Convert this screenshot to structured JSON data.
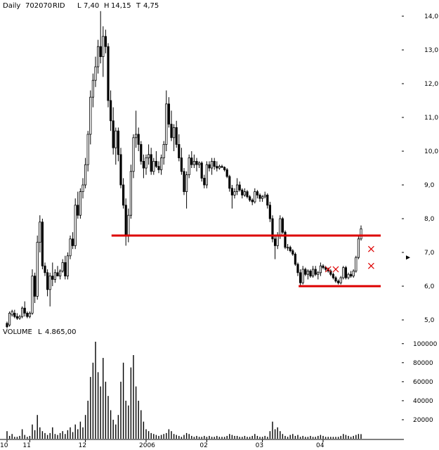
{
  "header": {
    "period": "Daily",
    "symbol": "702070",
    "exchange": "RID",
    "low_label": "L",
    "low_value": "7,40",
    "high_label": "H",
    "high_value": "14,15",
    "third_label": "T",
    "third_value": "4,75"
  },
  "volume_header": {
    "label": "VOLUME",
    "last_label": "L",
    "last_value": "4.865,00"
  },
  "colors": {
    "bull_fill": "#ffffff",
    "bear_fill": "#000000",
    "candle_stroke": "#000000",
    "support_line": "#dd0000",
    "cross_marks": "#dd0000"
  },
  "chart_data": [
    {
      "type": "candlestick",
      "title": "",
      "ylim": [
        5.0,
        14.0
      ],
      "yticks": [
        "5,0",
        "6,0",
        "7,0",
        "8,0",
        "9,0",
        "10,0",
        "11,0",
        "12,0",
        "13,0",
        "14,0"
      ],
      "ytick_values": [
        5,
        6,
        7,
        8,
        9,
        10,
        11,
        12,
        13,
        14
      ],
      "xtick_labels": [
        "10",
        "11",
        "12",
        "2006",
        "02",
        "03",
        "04"
      ],
      "xtick_index": [
        0,
        9,
        31,
        55,
        79,
        101,
        125
      ],
      "horizontal_lines": [
        {
          "value": 7.5,
          "from": 43,
          "to": 145
        },
        {
          "value": 6.0,
          "from": 117,
          "to": 145
        }
      ],
      "marks": [
        {
          "index": 127,
          "value": 6.5
        },
        {
          "index": 130,
          "value": 6.5
        },
        {
          "index": 144,
          "value": 7.1
        },
        {
          "index": 144,
          "value": 6.6
        }
      ],
      "pointer": {
        "value": 6.85
      },
      "ohlc": [
        [
          4.9,
          4.95,
          4.75,
          4.8
        ],
        [
          4.85,
          5.25,
          4.8,
          5.2
        ],
        [
          5.15,
          5.3,
          5.1,
          5.25
        ],
        [
          5.2,
          5.3,
          5.05,
          5.1
        ],
        [
          5.1,
          5.2,
          5.0,
          5.05
        ],
        [
          5.05,
          5.15,
          5.0,
          5.1
        ],
        [
          5.1,
          5.4,
          5.05,
          5.35
        ],
        [
          5.35,
          5.55,
          5.1,
          5.2
        ],
        [
          5.2,
          5.25,
          5.05,
          5.1
        ],
        [
          5.1,
          5.25,
          5.05,
          5.2
        ],
        [
          5.2,
          6.5,
          5.15,
          6.3
        ],
        [
          6.3,
          6.4,
          5.5,
          5.7
        ],
        [
          5.7,
          7.5,
          5.6,
          7.3
        ],
        [
          7.3,
          8.1,
          7.0,
          7.9
        ],
        [
          7.9,
          8.0,
          6.5,
          6.6
        ],
        [
          6.6,
          6.7,
          6.3,
          6.4
        ],
        [
          6.4,
          6.5,
          5.7,
          5.9
        ],
        [
          5.9,
          6.4,
          5.4,
          6.3
        ],
        [
          6.3,
          6.7,
          6.0,
          6.2
        ],
        [
          6.2,
          6.5,
          6.1,
          6.4
        ],
        [
          6.4,
          6.6,
          6.3,
          6.3
        ],
        [
          6.3,
          6.5,
          6.2,
          6.45
        ],
        [
          6.45,
          6.8,
          6.4,
          6.7
        ],
        [
          6.7,
          6.9,
          6.2,
          6.3
        ],
        [
          6.3,
          7.0,
          6.2,
          6.9
        ],
        [
          6.9,
          7.5,
          6.8,
          7.4
        ],
        [
          7.4,
          7.6,
          7.1,
          7.2
        ],
        [
          7.2,
          8.6,
          7.1,
          8.4
        ],
        [
          8.4,
          8.8,
          8.0,
          8.1
        ],
        [
          8.1,
          8.9,
          8.0,
          8.8
        ],
        [
          8.8,
          9.2,
          8.6,
          9.0
        ],
        [
          9.0,
          9.8,
          8.9,
          9.6
        ],
        [
          9.6,
          10.6,
          9.4,
          10.5
        ],
        [
          10.5,
          11.8,
          10.2,
          11.6
        ],
        [
          11.6,
          12.3,
          11.3,
          12.1
        ],
        [
          12.1,
          12.8,
          11.9,
          12.5
        ],
        [
          12.5,
          13.3,
          12.3,
          13.1
        ],
        [
          13.1,
          14.15,
          12.6,
          12.8
        ],
        [
          12.8,
          13.7,
          12.2,
          13.4
        ],
        [
          13.4,
          13.6,
          12.9,
          13.1
        ],
        [
          13.1,
          13.2,
          11.3,
          11.5
        ],
        [
          11.5,
          11.8,
          10.6,
          10.9
        ],
        [
          10.9,
          11.3,
          9.9,
          10.1
        ],
        [
          10.1,
          10.7,
          9.6,
          10.6
        ],
        [
          10.6,
          10.7,
          9.7,
          9.9
        ],
        [
          9.9,
          10.1,
          8.9,
          9.0
        ],
        [
          9.0,
          9.2,
          8.3,
          8.4
        ],
        [
          8.4,
          8.6,
          7.2,
          7.5
        ],
        [
          7.5,
          8.3,
          7.3,
          8.1
        ],
        [
          8.1,
          9.6,
          8.0,
          9.4
        ],
        [
          9.4,
          10.5,
          9.2,
          10.4
        ],
        [
          10.4,
          11.2,
          10.1,
          10.5
        ],
        [
          10.5,
          10.7,
          10.0,
          10.2
        ],
        [
          10.2,
          10.3,
          9.6,
          9.7
        ],
        [
          9.7,
          9.9,
          9.2,
          9.5
        ],
        [
          9.5,
          9.9,
          9.3,
          9.8
        ],
        [
          9.8,
          10.2,
          9.6,
          9.9
        ],
        [
          9.9,
          10.1,
          9.3,
          9.4
        ],
        [
          9.4,
          9.8,
          9.3,
          9.7
        ],
        [
          9.7,
          10.0,
          9.5,
          9.55
        ],
        [
          9.55,
          9.7,
          9.35,
          9.45
        ],
        [
          9.45,
          9.9,
          9.3,
          9.8
        ],
        [
          9.8,
          10.3,
          9.6,
          10.2
        ],
        [
          10.2,
          11.8,
          10.0,
          11.4
        ],
        [
          11.4,
          11.6,
          10.7,
          10.8
        ],
        [
          10.8,
          11.2,
          10.3,
          10.4
        ],
        [
          10.4,
          10.8,
          10.0,
          10.7
        ],
        [
          10.7,
          10.9,
          10.1,
          10.2
        ],
        [
          10.2,
          10.5,
          9.7,
          9.8
        ],
        [
          9.8,
          10.1,
          9.3,
          9.4
        ],
        [
          9.4,
          9.5,
          8.7,
          8.8
        ],
        [
          8.8,
          9.4,
          8.3,
          9.3
        ],
        [
          9.3,
          9.9,
          9.2,
          9.8
        ],
        [
          9.8,
          10.0,
          9.5,
          9.6
        ],
        [
          9.6,
          9.9,
          9.5,
          9.7
        ],
        [
          9.7,
          9.8,
          9.4,
          9.6
        ],
        [
          9.6,
          9.7,
          9.5,
          9.65
        ],
        [
          9.65,
          9.7,
          9.1,
          9.2
        ],
        [
          9.2,
          9.3,
          8.9,
          9.0
        ],
        [
          9.0,
          9.7,
          8.9,
          9.6
        ],
        [
          9.6,
          9.7,
          9.4,
          9.5
        ],
        [
          9.5,
          9.8,
          9.3,
          9.7
        ],
        [
          9.7,
          9.8,
          9.45,
          9.55
        ],
        [
          9.55,
          9.7,
          9.4,
          9.5
        ],
        [
          9.5,
          9.6,
          9.45,
          9.55
        ],
        [
          9.55,
          9.6,
          9.5,
          9.52
        ],
        [
          9.52,
          9.55,
          9.4,
          9.45
        ],
        [
          9.45,
          9.5,
          9.2,
          9.25
        ],
        [
          9.25,
          9.3,
          8.8,
          8.9
        ],
        [
          8.9,
          9.0,
          8.3,
          8.7
        ],
        [
          8.7,
          8.9,
          8.6,
          8.8
        ],
        [
          8.8,
          9.2,
          8.7,
          9.0
        ],
        [
          9.0,
          9.1,
          8.8,
          8.85
        ],
        [
          8.85,
          8.9,
          8.6,
          8.7
        ],
        [
          8.7,
          8.9,
          8.65,
          8.8
        ],
        [
          8.8,
          8.85,
          8.6,
          8.65
        ],
        [
          8.65,
          8.7,
          8.5,
          8.55
        ],
        [
          8.55,
          8.6,
          8.4,
          8.5
        ],
        [
          8.5,
          8.9,
          8.45,
          8.8
        ],
        [
          8.8,
          8.85,
          8.6,
          8.7
        ],
        [
          8.7,
          8.75,
          8.5,
          8.6
        ],
        [
          8.6,
          8.7,
          8.5,
          8.65
        ],
        [
          8.65,
          8.8,
          8.6,
          8.7
        ],
        [
          8.7,
          8.75,
          8.3,
          8.4
        ],
        [
          8.4,
          8.5,
          7.9,
          8.0
        ],
        [
          8.0,
          8.1,
          7.3,
          7.4
        ],
        [
          7.4,
          7.5,
          6.8,
          7.2
        ],
        [
          7.2,
          7.6,
          7.1,
          7.5
        ],
        [
          7.5,
          8.1,
          7.4,
          8.0
        ],
        [
          8.0,
          8.05,
          7.55,
          7.6
        ],
        [
          7.6,
          7.65,
          7.1,
          7.15
        ],
        [
          7.15,
          7.25,
          7.05,
          7.15
        ],
        [
          7.15,
          7.2,
          7.0,
          7.05
        ],
        [
          7.05,
          7.1,
          6.9,
          6.95
        ],
        [
          6.95,
          7.0,
          6.6,
          6.65
        ],
        [
          6.65,
          6.7,
          6.3,
          6.4
        ],
        [
          6.4,
          6.5,
          6.0,
          6.1
        ],
        [
          6.1,
          6.6,
          6.05,
          6.5
        ],
        [
          6.5,
          6.55,
          6.3,
          6.35
        ],
        [
          6.35,
          6.5,
          6.2,
          6.45
        ],
        [
          6.45,
          6.5,
          6.25,
          6.3
        ],
        [
          6.3,
          6.6,
          6.25,
          6.5
        ],
        [
          6.5,
          6.6,
          6.3,
          6.35
        ],
        [
          6.35,
          6.45,
          6.2,
          6.4
        ],
        [
          6.4,
          6.7,
          6.3,
          6.6
        ],
        [
          6.6,
          6.65,
          6.5,
          6.55
        ],
        [
          6.55,
          6.6,
          6.45,
          6.5
        ],
        [
          6.5,
          6.55,
          6.4,
          6.45
        ],
        [
          6.45,
          6.5,
          6.3,
          6.35
        ],
        [
          6.35,
          6.4,
          6.2,
          6.25
        ],
        [
          6.25,
          6.3,
          6.1,
          6.15
        ],
        [
          6.15,
          6.2,
          6.05,
          6.1
        ],
        [
          6.1,
          6.3,
          6.05,
          6.25
        ],
        [
          6.25,
          6.6,
          6.2,
          6.55
        ],
        [
          6.55,
          6.6,
          6.2,
          6.25
        ],
        [
          6.25,
          6.4,
          6.2,
          6.35
        ],
        [
          6.35,
          6.45,
          6.25,
          6.3
        ],
        [
          6.3,
          6.5,
          6.25,
          6.45
        ],
        [
          6.45,
          6.9,
          6.4,
          6.85
        ],
        [
          6.85,
          7.5,
          6.8,
          7.4
        ],
        [
          7.4,
          7.8,
          7.35,
          7.7
        ]
      ]
    },
    {
      "type": "bar",
      "title": "VOLUME",
      "ylim": [
        0,
        105000
      ],
      "yticks": [
        "20000",
        "40000",
        "60000",
        "80000",
        "100000"
      ],
      "ytick_values": [
        20000,
        40000,
        60000,
        80000,
        100000
      ],
      "values": [
        8000,
        3000,
        5000,
        2000,
        2000,
        3000,
        10000,
        4000,
        2000,
        3000,
        15000,
        9000,
        25000,
        12000,
        8000,
        6000,
        4000,
        6000,
        12000,
        5000,
        4000,
        6000,
        8000,
        5000,
        9000,
        12000,
        7000,
        15000,
        10000,
        18000,
        12000,
        25000,
        40000,
        65000,
        80000,
        102000,
        70000,
        55000,
        85000,
        60000,
        45000,
        30000,
        20000,
        15000,
        25000,
        60000,
        80000,
        40000,
        35000,
        75000,
        88000,
        55000,
        40000,
        30000,
        18000,
        10000,
        8000,
        6000,
        5000,
        4000,
        3000,
        4000,
        5000,
        6000,
        10000,
        8000,
        5000,
        4000,
        3000,
        2000,
        4000,
        6000,
        5000,
        3000,
        2000,
        3000,
        2000,
        2000,
        3000,
        2000,
        3000,
        2000,
        2000,
        3000,
        2000,
        2000,
        2000,
        3000,
        5000,
        4000,
        3000,
        3000,
        2000,
        2000,
        3000,
        2000,
        2000,
        3000,
        5000,
        3000,
        2000,
        2000,
        3000,
        2000,
        8000,
        18000,
        10000,
        12000,
        8000,
        5000,
        3000,
        2000,
        4000,
        5000,
        3000,
        4000,
        2000,
        3000,
        2000,
        2000,
        3000,
        2000,
        2000,
        3000,
        4000,
        3000,
        2000,
        2000,
        2000,
        2000,
        2000,
        2000,
        3000,
        5000,
        4000,
        3000,
        2000,
        3000,
        4000,
        5000,
        4865
      ]
    }
  ]
}
